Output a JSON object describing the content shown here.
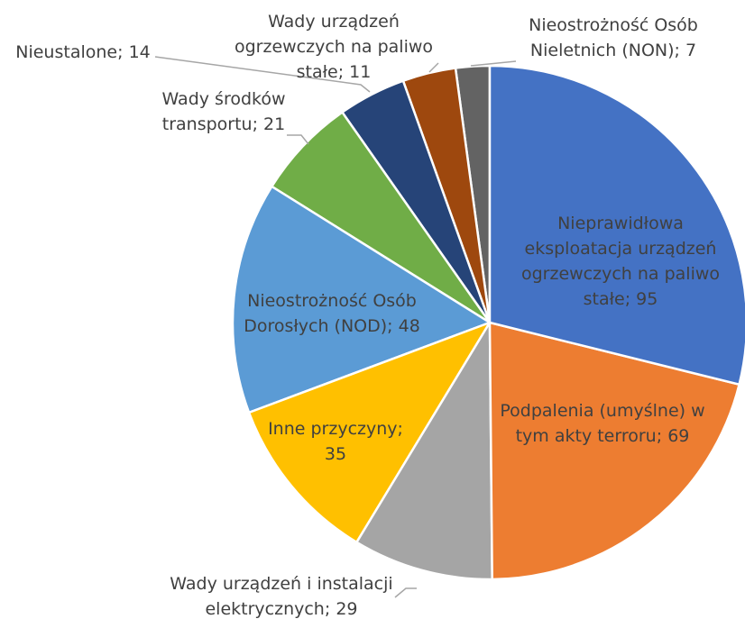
{
  "chart_data": {
    "type": "pie",
    "categories": [
      "Nieprawidłowa eksploatacja urządzeń ogrzewczych na paliwo stałe",
      "Podpalenia (umyślne) w tym akty terroru",
      "Wady urządzeń i instalacji elektrycznych",
      "Inne przyczyny",
      "Nieostrożność Osób Dorosłych (NOD)",
      "Wady środków transportu",
      "Nieustalone",
      "Wady urządzeń ogrzewczych na paliwo stałe",
      "Nieostrożność Osób Nieletnich (NON)"
    ],
    "values": [
      95,
      69,
      29,
      35,
      48,
      21,
      14,
      11,
      7
    ],
    "colors": [
      "#4472c4",
      "#ed7d31",
      "#a5a5a5",
      "#ffc000",
      "#5b9bd5",
      "#70ad47",
      "#264478",
      "#9e480e",
      "#636363"
    ],
    "label_separator": ";"
  }
}
